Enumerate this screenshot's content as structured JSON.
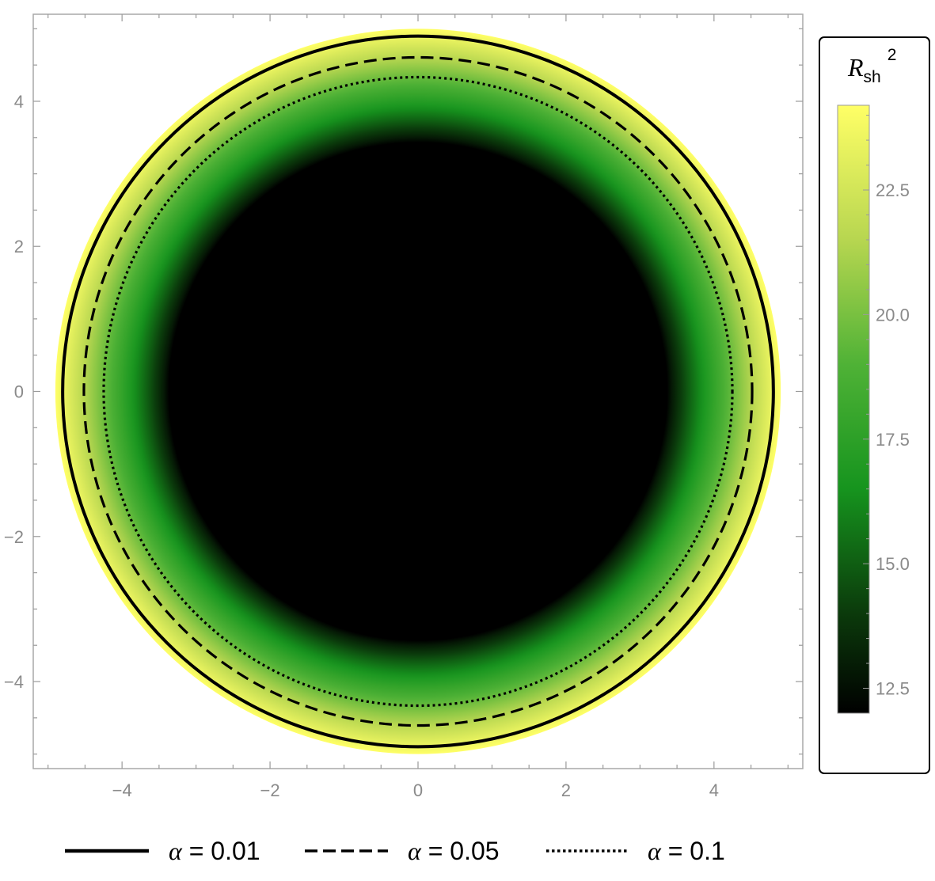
{
  "chart_data": {
    "type": "heatmap",
    "title": "",
    "xlabel": "",
    "ylabel": "",
    "xlim": [
      -5.2,
      5.2
    ],
    "ylim": [
      -5.2,
      5.2
    ],
    "x_ticks": [
      -4,
      -2,
      0,
      2,
      4
    ],
    "y_ticks": [
      -4,
      -2,
      0,
      2,
      4
    ],
    "x_tick_labels": [
      "−4",
      "−2",
      "0",
      "2",
      "4"
    ],
    "y_tick_labels": [
      "−4",
      "−2",
      "0",
      "2",
      "4"
    ],
    "colormap": {
      "min": 12.0,
      "max": 24.2,
      "stops": [
        {
          "value": 12.0,
          "color": "#000000"
        },
        {
          "value": 14.0,
          "color": "#0b3a0b"
        },
        {
          "value": 16.5,
          "color": "#16941e"
        },
        {
          "value": 19.0,
          "color": "#4fb236"
        },
        {
          "value": 21.5,
          "color": "#b7d650"
        },
        {
          "value": 24.2,
          "color": "#ffff66"
        }
      ]
    },
    "surface": {
      "dark_core_radius": 3.4,
      "outer_radius": 4.95
    },
    "colorbar": {
      "title_main": "R",
      "title_sub": "sh",
      "title_sup": "2",
      "ticks": [
        12.5,
        15.0,
        17.5,
        20.0,
        22.5
      ],
      "tick_labels": [
        "12.5",
        "15.0",
        "17.5",
        "20.0",
        "22.5"
      ]
    },
    "series": [
      {
        "name": "α = 0.01",
        "symbol": "α",
        "value_text": " = 0.01",
        "style": "solid",
        "radius": 4.85
      },
      {
        "name": "α = 0.05",
        "symbol": "α",
        "value_text": " = 0.05",
        "style": "dashed",
        "radius": 4.56
      },
      {
        "name": "α = 0.1",
        "symbol": "α",
        "value_text": " = 0.1",
        "style": "dotted",
        "radius": 4.29
      }
    ],
    "legend_position": "bottom"
  }
}
